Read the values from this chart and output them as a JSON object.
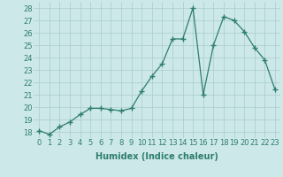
{
  "x": [
    0,
    1,
    2,
    3,
    4,
    5,
    6,
    7,
    8,
    9,
    10,
    11,
    12,
    13,
    14,
    15,
    16,
    17,
    18,
    19,
    20,
    21,
    22,
    23
  ],
  "y": [
    18.1,
    17.8,
    18.4,
    18.8,
    19.4,
    19.9,
    19.9,
    19.8,
    19.7,
    19.9,
    21.3,
    22.5,
    23.5,
    25.5,
    25.5,
    28.0,
    21.0,
    25.0,
    27.3,
    27.0,
    26.1,
    24.8,
    23.8,
    21.4
  ],
  "line_color": "#2e7d6e",
  "marker": "+",
  "marker_size": 4,
  "marker_color": "#2e7d6e",
  "bg_color": "#cce8e8",
  "grid_color": "#aacccc",
  "xlabel": "Humidex (Indice chaleur)",
  "xlim": [
    -0.5,
    23.5
  ],
  "ylim": [
    17.5,
    28.5
  ],
  "yticks": [
    18,
    19,
    20,
    21,
    22,
    23,
    24,
    25,
    26,
    27,
    28
  ],
  "xtick_labels": [
    "0",
    "1",
    "2",
    "3",
    "4",
    "5",
    "6",
    "7",
    "8",
    "9",
    "10",
    "11",
    "12",
    "13",
    "14",
    "15",
    "16",
    "17",
    "18",
    "19",
    "20",
    "21",
    "22",
    "23"
  ],
  "label_fontsize": 7,
  "tick_fontsize": 6
}
